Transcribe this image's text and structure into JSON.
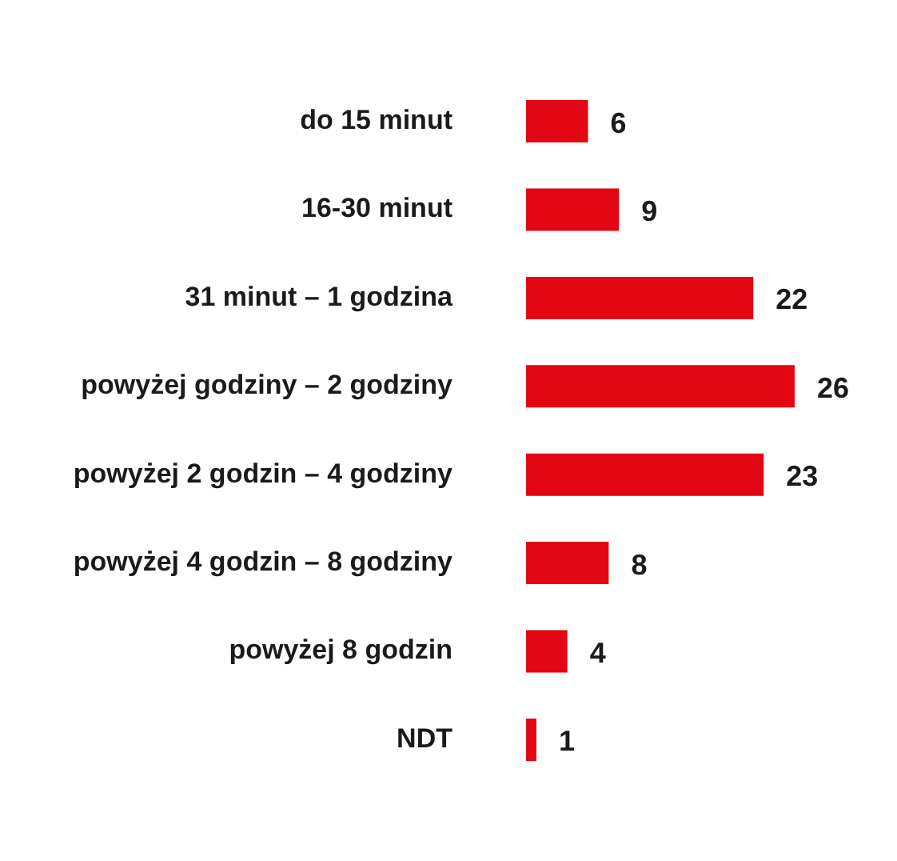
{
  "chart_data": {
    "type": "bar",
    "orientation": "horizontal",
    "categories": [
      "do 15 minut",
      "16-30 minut",
      "31 minut – 1 godzina",
      "powyżej godziny – 2 godziny",
      "powyżej 2 godzin – 4 godziny",
      "powyżej 4 godzin – 8 godziny",
      "powyżej 8 godzin",
      "NDT"
    ],
    "values": [
      6,
      9,
      22,
      26,
      23,
      8,
      4,
      1
    ],
    "color": "#e30613",
    "data_labels": true,
    "legend": false
  }
}
